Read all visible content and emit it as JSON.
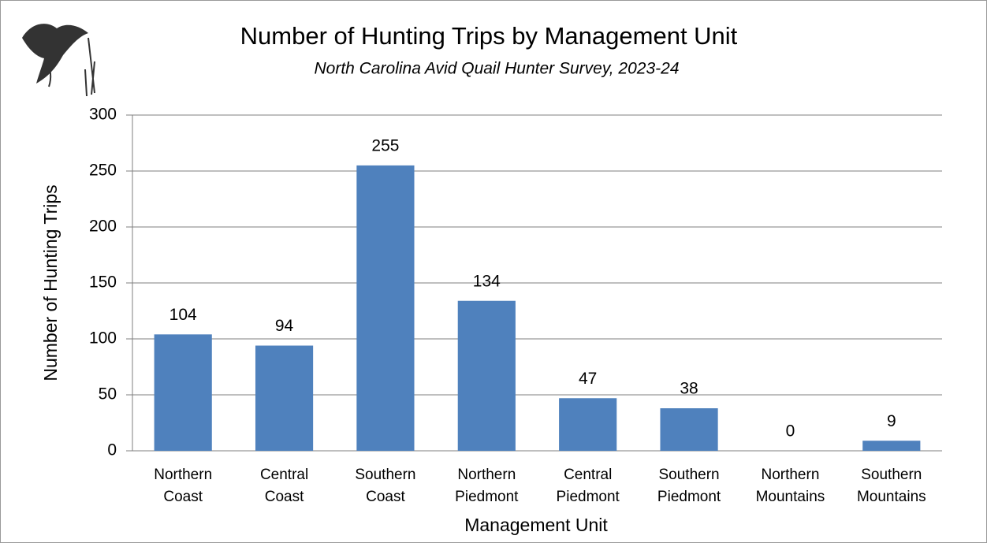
{
  "chart_data": {
    "type": "bar",
    "title": "Number of Hunting Trips by Management Unit",
    "subtitle": "North Carolina Avid Quail Hunter Survey, 2023-24",
    "x_label": "Management Unit",
    "y_label": "Number of Hunting Trips",
    "categories": [
      [
        "Northern",
        "Coast"
      ],
      [
        "Central",
        "Coast"
      ],
      [
        "Southern",
        "Coast"
      ],
      [
        "Northern",
        "Piedmont"
      ],
      [
        "Central",
        "Piedmont"
      ],
      [
        "Southern",
        "Piedmont"
      ],
      [
        "Northern",
        "Mountains"
      ],
      [
        "Southern",
        "Mountains"
      ]
    ],
    "values": [
      104,
      94,
      255,
      134,
      47,
      38,
      0,
      9
    ],
    "color": "#4f81bd",
    "ylim": [
      0,
      300
    ],
    "yticks": [
      0,
      50,
      100,
      150,
      200,
      250,
      300
    ],
    "grid": true
  }
}
